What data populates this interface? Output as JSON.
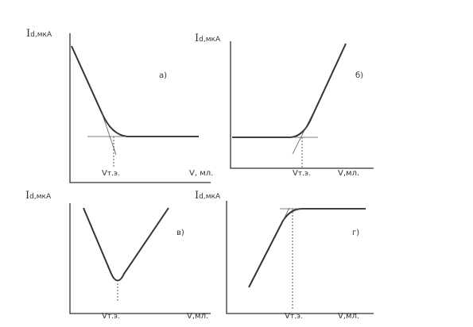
{
  "panels": [
    {
      "letter": "а)",
      "y_label": {
        "main": "I",
        "sub": "d,мкА"
      },
      "x_label": "V, мл.",
      "marker": {
        "main": "V",
        "sub": "т.э."
      }
    },
    {
      "letter": "б)",
      "y_label": {
        "main": "I",
        "sub": "d,мкА"
      },
      "x_label": "V,мл.",
      "marker": {
        "main": "V",
        "sub": "т.э."
      }
    },
    {
      "letter": "в)",
      "y_label": {
        "main": "I",
        "sub": "d,мкА"
      },
      "x_label": "V,мл.",
      "marker": {
        "main": "V",
        "sub": "т.э."
      }
    },
    {
      "letter": "г)",
      "y_label": {
        "main": "I",
        "sub": "d,мкА"
      },
      "x_label": "V,мл.",
      "marker": {
        "main": "V",
        "sub": "т.э."
      }
    }
  ]
}
